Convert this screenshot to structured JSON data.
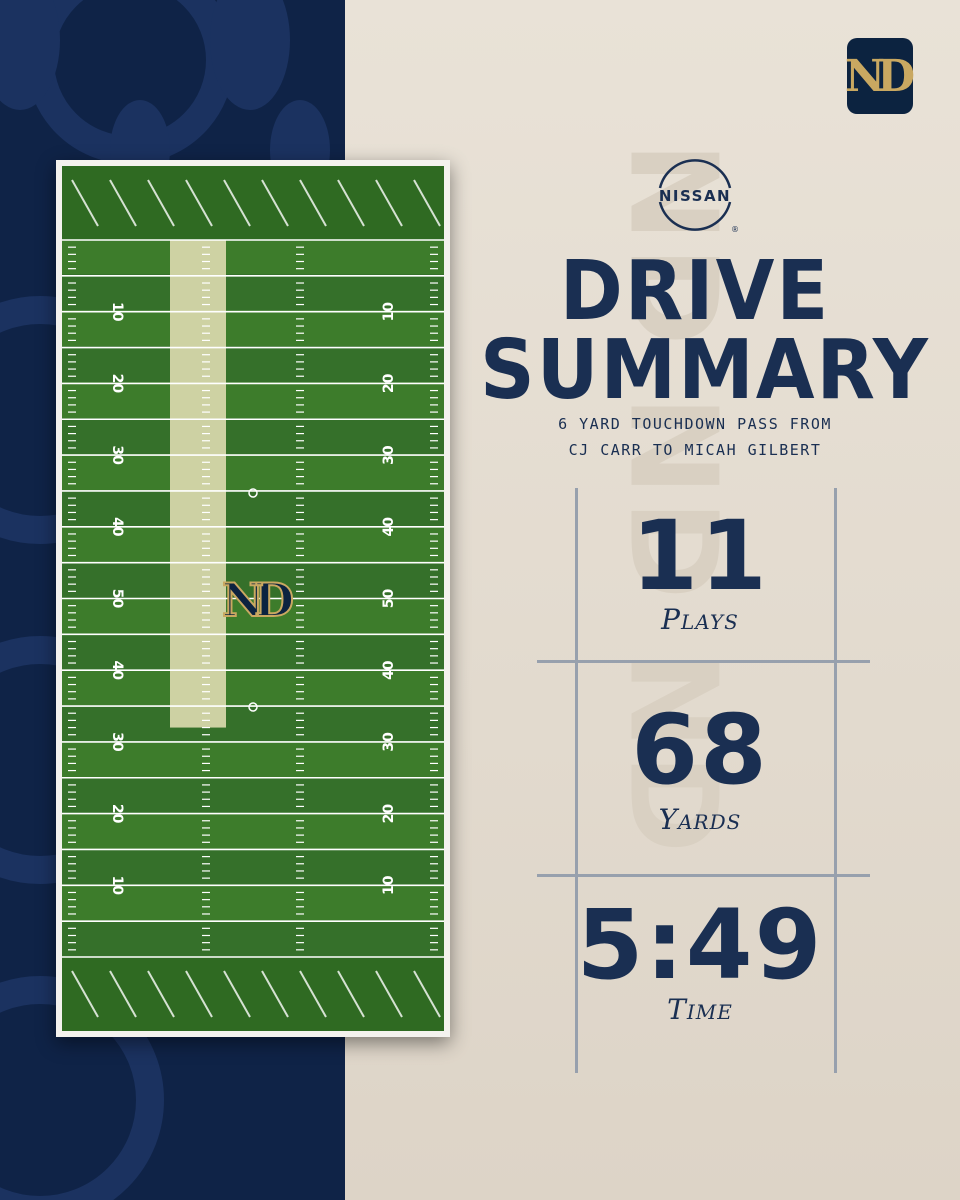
{
  "brand": {
    "team_logo": "ND",
    "sponsor_name": "NISSAN"
  },
  "colors": {
    "navy": "#0f2347",
    "gold": "#c9a861",
    "beige": "#e6ded2",
    "turf": "#3f7a2a",
    "drive_highlight": "#e8e2b8"
  },
  "title": {
    "line1": "DRIVE",
    "line2": "SUMMARY"
  },
  "subtitle": {
    "line1": "6 Yard Touchdown Pass from",
    "line2": "CJ Carr to Micah Gilbert"
  },
  "stats": [
    {
      "value": "11",
      "label": "Plays"
    },
    {
      "value": "68",
      "label": "Yards"
    },
    {
      "value": "5:49",
      "label": "Time"
    }
  ],
  "field": {
    "left_numbers": [
      "10",
      "20",
      "30",
      "40",
      "50",
      "40",
      "30",
      "20",
      "10"
    ],
    "right_numbers": [
      "10",
      "20",
      "30",
      "40",
      "50",
      "40",
      "30",
      "20",
      "10"
    ],
    "drive_start_yardline": 32,
    "drive_end_yardline": 100,
    "drive_yards": 68
  }
}
